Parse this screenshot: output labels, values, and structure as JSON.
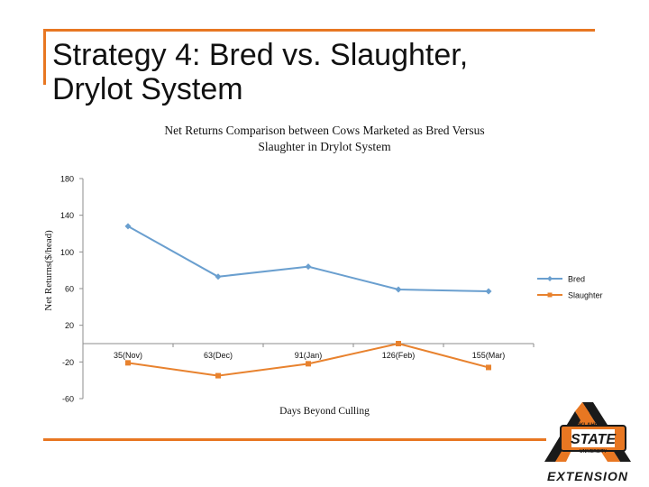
{
  "slide": {
    "title": "Strategy 4:  Bred vs. Slaughter,\n              Drylot System"
  },
  "colors": {
    "accent": "#E87722",
    "bred": "#6A9FCF",
    "slaughter": "#E8822E",
    "axis": "#8C8C8C",
    "text": "#111111"
  },
  "chart_data": {
    "type": "line",
    "title": "Net Returns Comparison between Cows Marketed as Bred Versus\nSlaughter in Drylot System",
    "xlabel": "Days Beyond Culling",
    "ylabel": "Net Returns($/head)",
    "categories": [
      "35(Nov)",
      "63(Dec)",
      "91(Jan)",
      "126(Feb)",
      "155(Mar)"
    ],
    "yticks": [
      "180",
      "140",
      "100",
      "60",
      "20",
      "-20",
      "-60"
    ],
    "ylim": [
      -60,
      180
    ],
    "grid": false,
    "legend_position": "right",
    "series": [
      {
        "name": "Bred",
        "values": [
          128,
          73,
          84,
          59,
          57
        ]
      },
      {
        "name": "Slaughter",
        "values": [
          -21,
          -35,
          -22,
          0,
          -26
        ]
      }
    ]
  },
  "logo": {
    "wordmark": "STATE",
    "arc_text": "OKLAHOMA",
    "sub_text": "UNIVERSITY",
    "caption": "EXTENSION"
  }
}
